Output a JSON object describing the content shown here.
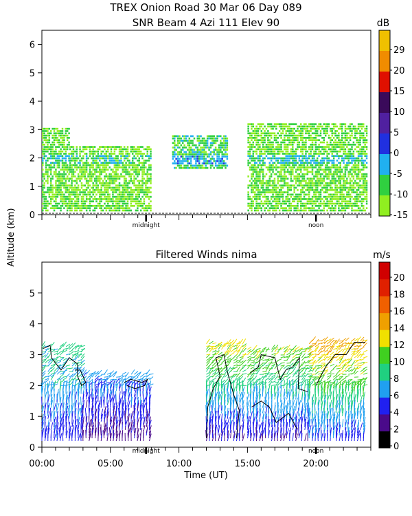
{
  "header": {
    "line1": "TREX Onion Road  30 Mar 06 Day 089",
    "line2": "SNR Beam 4 Azi 111 Elev 90"
  },
  "shared": {
    "ylabel": "Altitude (km)",
    "xlabel": "Time (UT)",
    "xticks": [
      "00:00",
      "05:00",
      "10:00",
      "15:00",
      "20:00"
    ],
    "markers": [
      "midnight",
      "noon"
    ]
  },
  "chart_data": [
    {
      "type": "heatmap",
      "title": "SNR Beam 4 Azi 111 Elev 90",
      "xlabel": "",
      "ylabel": "Altitude (km)",
      "ylim": [
        0,
        6.5
      ],
      "yticks": [
        0,
        1,
        2,
        3,
        4,
        5,
        6
      ],
      "colorbar": {
        "unit": "dB",
        "ticks": [
          29,
          20,
          15,
          10,
          5,
          0,
          -5,
          -10,
          -15
        ],
        "colors": [
          "#f0c000",
          "#f08c00",
          "#e01000",
          "#3a0a5a",
          "#5020a0",
          "#2030e0",
          "#20b0f0",
          "#30d040",
          "#90ee20"
        ]
      },
      "cells_description_values": [
        {
          "x_hours": [
            0.0,
            2.0
          ],
          "y_km": [
            0.1,
            3.0
          ],
          "snr_db": -12
        },
        {
          "x_hours": [
            2.0,
            8.0
          ],
          "y_km": [
            0.1,
            2.4
          ],
          "snr_db": -13
        },
        {
          "x_hours": [
            9.5,
            13.5
          ],
          "y_km": [
            1.6,
            2.8
          ],
          "snr_db": -10
        },
        {
          "x_hours": [
            15.0,
            23.7
          ],
          "y_km": [
            0.1,
            3.2
          ],
          "snr_db": -12
        }
      ]
    },
    {
      "type": "scatter",
      "title": "Filtered Winds nima",
      "xlabel": "Time (UT)",
      "ylabel": "Altitude (km)",
      "ylim": [
        0,
        6.0
      ],
      "xlim": [
        0,
        24
      ],
      "yticks": [
        0,
        1,
        2,
        3,
        4,
        5
      ],
      "colorbar": {
        "unit": "m/s",
        "ticks": [
          20,
          18,
          16,
          14,
          12,
          10,
          8,
          6,
          4,
          2,
          0
        ],
        "colors": [
          "#000000",
          "#4a0a8a",
          "#2020f0",
          "#20a0f0",
          "#20d080",
          "#40d020",
          "#f0e000",
          "#f0a000",
          "#f06000",
          "#e02000",
          "#d00000"
        ]
      },
      "wind_regions": [
        {
          "x_hours": [
            0.0,
            3.0
          ],
          "y_km": [
            0.2,
            3.3
          ],
          "speed_ms": [
            4,
            8
          ]
        },
        {
          "x_hours": [
            3.0,
            8.0
          ],
          "y_km": [
            0.2,
            2.4
          ],
          "speed_ms": [
            2,
            6
          ]
        },
        {
          "x_hours": [
            12.0,
            14.8
          ],
          "y_km": [
            0.2,
            3.4
          ],
          "speed_ms": [
            3,
            12
          ]
        },
        {
          "x_hours": [
            15.0,
            19.5
          ],
          "y_km": [
            0.2,
            3.2
          ],
          "speed_ms": [
            3,
            11
          ]
        },
        {
          "x_hours": [
            19.5,
            23.6
          ],
          "y_km": [
            0.2,
            3.5
          ],
          "speed_ms": [
            4,
            14
          ]
        }
      ]
    }
  ]
}
